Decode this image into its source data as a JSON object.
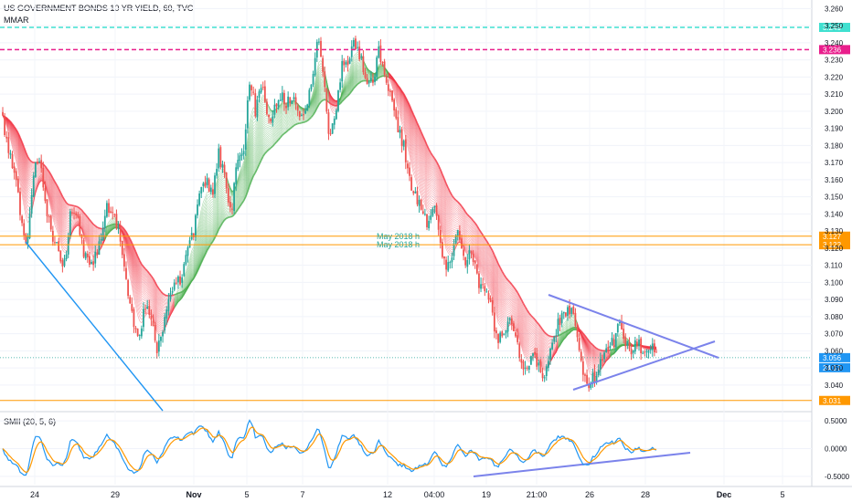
{
  "header": {
    "title": "US GOVERNMENT BONDS 10 YR YIELD, 60, TVC",
    "indicator": "MMAR"
  },
  "indicator_panel": {
    "title": "SMII (20, 5, 6)"
  },
  "colors": {
    "up_candle": "#26a69a",
    "down_candle": "#ef5350",
    "ribbon_down": "#f23645",
    "ribbon_up": "#4caf50",
    "trendline": "#2196f3",
    "triangle": "#7b83eb",
    "cyan_level": "#40e0d0",
    "magenta_level": "#e91e8c",
    "orange_level": "#ff9800",
    "price_tag": "#2196f3"
  },
  "chart_data": [
    {
      "type": "candlestick",
      "price_axis": {
        "ylim": [
          3.025,
          3.265
        ],
        "ticks": [
          "3.260",
          "3.250",
          "3.240",
          "3.230",
          "3.220",
          "3.210",
          "3.200",
          "3.190",
          "3.180",
          "3.170",
          "3.160",
          "3.150",
          "3.140",
          "3.130",
          "3.120",
          "3.110",
          "3.100",
          "3.090",
          "3.080",
          "3.070",
          "3.060",
          "3.050",
          "3.040"
        ]
      },
      "x_axis_labels": [
        "24",
        "29",
        "Nov",
        "5",
        "7",
        "12",
        "04:00",
        "19",
        "21:00",
        "26",
        "28",
        "Dec",
        "5"
      ],
      "anchor_closes": [
        3.195,
        3.175,
        3.165,
        3.135,
        3.12,
        3.165,
        3.17,
        3.145,
        3.125,
        3.12,
        3.11,
        3.14,
        3.14,
        3.12,
        3.11,
        3.115,
        3.13,
        3.145,
        3.138,
        3.125,
        3.1,
        3.08,
        3.065,
        3.085,
        3.08,
        3.06,
        3.075,
        3.09,
        3.1,
        3.1,
        3.12,
        3.13,
        3.155,
        3.16,
        3.15,
        3.175,
        3.16,
        3.14,
        3.17,
        3.175,
        3.22,
        3.2,
        3.215,
        3.195,
        3.2,
        3.21,
        3.205,
        3.21,
        3.2,
        3.195,
        3.215,
        3.245,
        3.22,
        3.185,
        3.195,
        3.23,
        3.225,
        3.24,
        3.23,
        3.22,
        3.215,
        3.235,
        3.22,
        3.21,
        3.19,
        3.18,
        3.16,
        3.15,
        3.14,
        3.135,
        3.145,
        3.12,
        3.105,
        3.12,
        3.13,
        3.11,
        3.12,
        3.1,
        3.095,
        3.09,
        3.07,
        3.065,
        3.08,
        3.07,
        3.055,
        3.05,
        3.06,
        3.05,
        3.045,
        3.065,
        3.075,
        3.08,
        3.085,
        3.075,
        3.05,
        3.04,
        3.045,
        3.055,
        3.06,
        3.065,
        3.075,
        3.065,
        3.06,
        3.065,
        3.058,
        3.065,
        3.056
      ],
      "levels": [
        {
          "value": 3.249,
          "label": "3.249",
          "color": "cyan_level"
        },
        {
          "value": 3.236,
          "label": "3.236",
          "color": "magenta_level"
        },
        {
          "value": 3.127,
          "label": "3.127",
          "color": "orange_level",
          "note": "May 2018 h"
        },
        {
          "value": 3.122,
          "label": "3.122",
          "color": "orange_level",
          "note": "May 2018 h"
        },
        {
          "value": 3.031,
          "label": "3.031",
          "color": "orange_level"
        }
      ],
      "last_price": "3.056",
      "countdown": "24:17"
    },
    {
      "type": "line",
      "name": "SMII",
      "ylim": [
        -0.65,
        0.65
      ],
      "ticks": [
        "0.5000",
        "0.0000",
        "-0.5000"
      ]
    }
  ]
}
